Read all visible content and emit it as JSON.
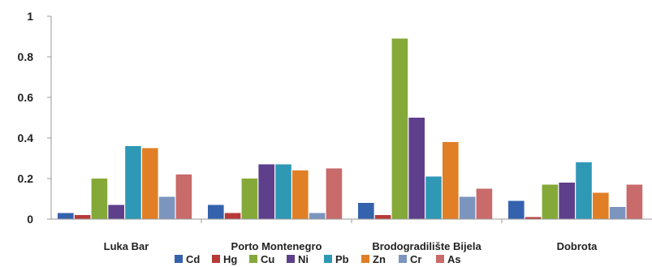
{
  "chart_data": {
    "type": "bar",
    "title": "",
    "xlabel": "",
    "ylabel": "",
    "ylim": [
      0,
      1
    ],
    "yticks": [
      "0",
      "0.2",
      "0.4",
      "0.6",
      "0.8",
      "1"
    ],
    "grid": false,
    "legend_position": "bottom",
    "categories": [
      "Luka Bar",
      "Porto Montenegro",
      "Brodogradilište Bijela",
      "Dobrota"
    ],
    "series": [
      {
        "name": "Cd",
        "color": "#3562ad",
        "values": [
          0.03,
          0.07,
          0.08,
          0.09
        ]
      },
      {
        "name": "Hg",
        "color": "#b83a38",
        "values": [
          0.02,
          0.03,
          0.02,
          0.01
        ]
      },
      {
        "name": "Cu",
        "color": "#84a939",
        "values": [
          0.2,
          0.2,
          0.89,
          0.17
        ]
      },
      {
        "name": "Ni",
        "color": "#5e3f8c",
        "values": [
          0.07,
          0.27,
          0.5,
          0.18
        ]
      },
      {
        "name": "Pb",
        "color": "#2f98b5",
        "values": [
          0.36,
          0.27,
          0.21,
          0.28
        ]
      },
      {
        "name": "Zn",
        "color": "#e07f26",
        "values": [
          0.35,
          0.24,
          0.38,
          0.13
        ]
      },
      {
        "name": "Cr",
        "color": "#7b95bf",
        "values": [
          0.11,
          0.03,
          0.11,
          0.06
        ]
      },
      {
        "name": "As",
        "color": "#c96a6b",
        "values": [
          0.22,
          0.25,
          0.15,
          0.17
        ]
      }
    ]
  }
}
